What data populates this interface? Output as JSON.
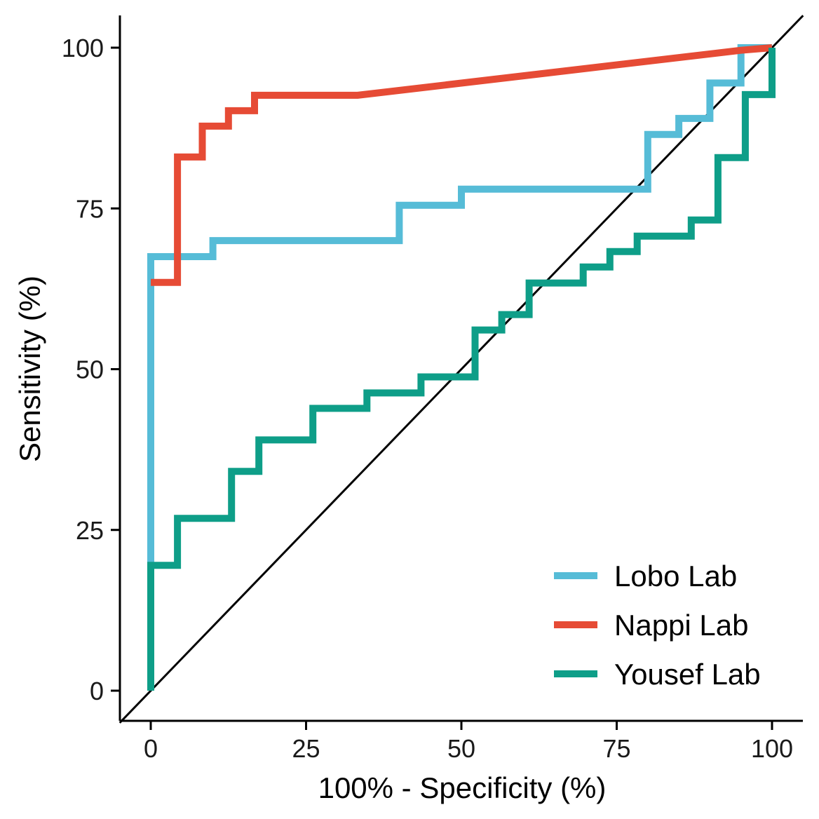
{
  "chart_data": {
    "type": "line",
    "xlabel": "100% - Specificity (%)",
    "ylabel": "Sensitivity (%)",
    "xlim": [
      0,
      100
    ],
    "ylim": [
      0,
      100
    ],
    "x_ticks": [
      0,
      25,
      50,
      75,
      100
    ],
    "y_ticks": [
      0,
      25,
      50,
      75,
      100
    ],
    "x_tick_labels": [
      "0",
      "25",
      "50",
      "75",
      "100"
    ],
    "y_tick_labels": [
      "0",
      "25",
      "50",
      "75",
      "100"
    ],
    "reference_line": {
      "from": [
        0,
        0
      ],
      "to": [
        100,
        100
      ],
      "color": "#000000"
    },
    "legend_position": "bottom-right",
    "series": [
      {
        "name": "Lobo Lab",
        "color": "#56BCD7",
        "points": [
          [
            0,
            20
          ],
          [
            0,
            67.5
          ],
          [
            10,
            67.5
          ],
          [
            10,
            70
          ],
          [
            40,
            70
          ],
          [
            40,
            75.5
          ],
          [
            50,
            75.5
          ],
          [
            50,
            78
          ],
          [
            80,
            78
          ],
          [
            80,
            86.5
          ],
          [
            85,
            86.5
          ],
          [
            85,
            89
          ],
          [
            90,
            89
          ],
          [
            90,
            94.5
          ],
          [
            95,
            94.5
          ],
          [
            95,
            100
          ],
          [
            100,
            100
          ]
        ]
      },
      {
        "name": "Nappi Lab",
        "color": "#E64B35",
        "points": [
          [
            0,
            63.5
          ],
          [
            4.3,
            63.5
          ],
          [
            4.3,
            83
          ],
          [
            8.3,
            83
          ],
          [
            8.3,
            87.8
          ],
          [
            12.5,
            87.8
          ],
          [
            12.5,
            90.2
          ],
          [
            16.7,
            90.2
          ],
          [
            16.7,
            92.6
          ],
          [
            33.3,
            92.6
          ],
          [
            95,
            99.6
          ],
          [
            100,
            100
          ]
        ]
      },
      {
        "name": "Yousef Lab",
        "color": "#0E9E88",
        "points": [
          [
            0,
            0
          ],
          [
            0,
            19.5
          ],
          [
            4.3,
            19.5
          ],
          [
            4.3,
            26.8
          ],
          [
            13,
            26.8
          ],
          [
            13,
            34.1
          ],
          [
            17.4,
            34.1
          ],
          [
            17.4,
            39
          ],
          [
            26.1,
            39
          ],
          [
            26.1,
            43.9
          ],
          [
            34.8,
            43.9
          ],
          [
            34.8,
            46.3
          ],
          [
            43.5,
            46.3
          ],
          [
            43.5,
            48.8
          ],
          [
            52.2,
            48.8
          ],
          [
            52.2,
            56.1
          ],
          [
            56.5,
            56.1
          ],
          [
            56.5,
            58.5
          ],
          [
            60.9,
            58.5
          ],
          [
            60.9,
            63.4
          ],
          [
            69.6,
            63.4
          ],
          [
            69.6,
            65.9
          ],
          [
            73.9,
            65.9
          ],
          [
            73.9,
            68.3
          ],
          [
            78.3,
            68.3
          ],
          [
            78.3,
            70.7
          ],
          [
            87,
            70.7
          ],
          [
            87,
            73.2
          ],
          [
            91.3,
            73.2
          ],
          [
            91.3,
            82.9
          ],
          [
            95.7,
            82.9
          ],
          [
            95.7,
            92.7
          ],
          [
            100,
            92.7
          ],
          [
            100,
            100
          ]
        ]
      }
    ]
  }
}
